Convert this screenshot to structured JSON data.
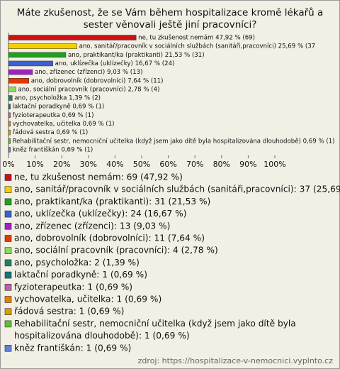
{
  "chart_data": {
    "type": "bar",
    "orientation": "horizontal",
    "title": "Máte zkušenost, že se Vám během hospitalizace kromě lékařů a sester věnovali ještě jiní pracovníci?",
    "bar_labels": [
      "ne, tu zkušenost nemám 47,92 % (69)",
      "ano, sanitář/pracovník v sociálních službách (sanitáři,pracovníci) 25,69 % (37",
      "ano, praktikant/ka (praktikanti) 21,53 % (31)",
      "ano, uklízečka (uklízečky) 16,67 % (24)",
      "ano, zřízenec (zřízenci) 9,03 % (13)",
      "ano, dobrovolník (dobrovolníci) 7,64 % (11)",
      "ano, sociální pracovník (pracovníci) 2,78 % (4)",
      "ano, psycholožka 1,39 % (2)",
      "laktační poradkyně 0,69 % (1)",
      "fyzioterapeutka 0,69 % (1)",
      "vychovatelka, učitelka 0,69 % (1)",
      "řádová sestra 0,69 % (1)",
      "Rehabilitační sestr, nemocniční učitelka (když jsem jako dítě byla hospitalizována dlouhodobě) 0,69 % (1)",
      "kněz františkán 0,69 % (1)"
    ],
    "legend_labels": [
      "ne, tu zkušenost nemám: 69 (47,92 %)",
      "ano, sanitář/pracovník v sociálních službách (sanitáři,pracovníci): 37 (25,69",
      "ano, praktikant/ka (praktikanti): 31 (21,53 %)",
      "ano, uklízečka (uklízečky): 24 (16,67 %)",
      "ano, zřízenec (zřízenci): 13 (9,03 %)",
      "ano, dobrovolník (dobrovolníci): 11 (7,64 %)",
      "ano, sociální pracovník (pracovníci): 4 (2,78 %)",
      "ano, psycholožka: 2 (1,39 %)",
      "laktační poradkyně: 1 (0,69 %)",
      "fyzioterapeutka: 1 (0,69 %)",
      "vychovatelka, učitelka: 1 (0,69 %)",
      "řádová sestra: 1 (0,69 %)",
      [
        "Rehabilitační sestr, nemocniční učitelka (když jsem jako dítě byla",
        "hospitalizována dlouhodobě): 1 (0,69 %)"
      ],
      "kněz františkán: 1 (0,69 %)"
    ],
    "values": [
      47.92,
      25.69,
      21.53,
      16.67,
      9.03,
      7.64,
      2.78,
      1.39,
      0.69,
      0.69,
      0.69,
      0.69,
      0.69,
      0.69
    ],
    "colors": [
      "#d01010",
      "#f4d000",
      "#20a020",
      "#3a60d8",
      "#a020c8",
      "#e03a00",
      "#90d860",
      "#208060",
      "#107878",
      "#c060a8",
      "#e88000",
      "#d8a000",
      "#60c030",
      "#6080d8"
    ],
    "xlim": [
      0,
      100
    ],
    "xticks": [
      {
        "value": 0,
        "label": "0%"
      },
      {
        "value": 10,
        "label": "10%"
      },
      {
        "value": 20,
        "label": "20%"
      },
      {
        "value": 30,
        "label": "30%"
      },
      {
        "value": 40,
        "label": "40%"
      },
      {
        "value": 50,
        "label": "50%"
      },
      {
        "value": 60,
        "label": "60%"
      },
      {
        "value": 70,
        "label": "70%"
      },
      {
        "value": 80,
        "label": "80%"
      },
      {
        "value": 90,
        "label": "90%"
      },
      {
        "value": 100,
        "label": "100%"
      }
    ],
    "source": "zdroj: https://hospitalizace-v-nemocnici.vyplnto.cz"
  }
}
